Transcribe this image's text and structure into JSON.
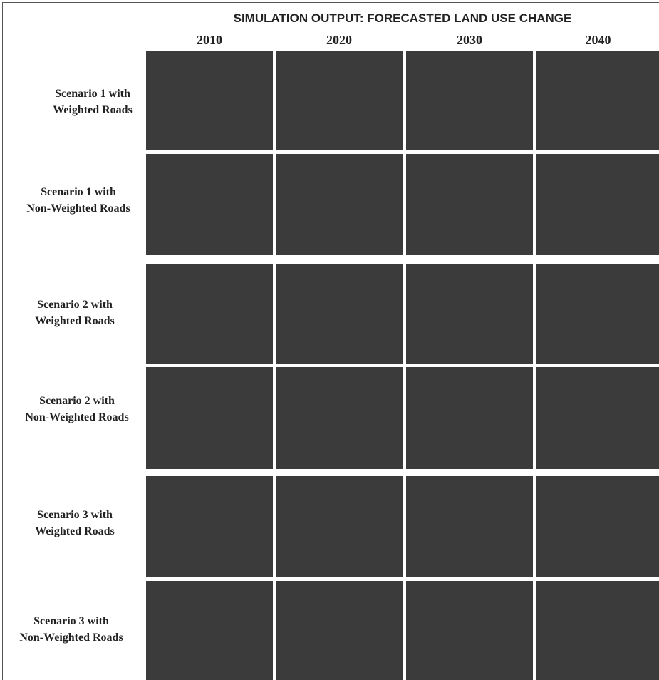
{
  "figure": {
    "title": "SIMULATION OUTPUT: FORECASTED LAND USE CHANGE",
    "columns": [
      "2010",
      "2020",
      "2030",
      "2040"
    ],
    "rows": [
      [
        "Scenario 1 with",
        "Weighted Roads"
      ],
      [
        "Scenario 1 with",
        "Non-Weighted Roads"
      ],
      [
        "Scenario 2 with",
        "Weighted Roads"
      ],
      [
        "Scenario 2 with",
        "Non-Weighted Roads"
      ],
      [
        "Scenario 3 with",
        "Weighted Roads"
      ],
      [
        "Scenario 3 with",
        "Non-Weighted Roads"
      ]
    ]
  }
}
